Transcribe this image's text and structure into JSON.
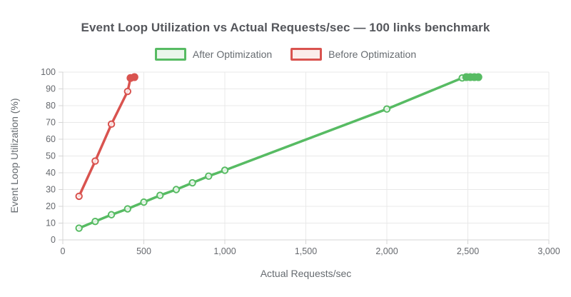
{
  "title": "Event Loop Utilization vs Actual Requests/sec — 100 links benchmark",
  "colors": {
    "after_line": "#57bb63",
    "after_legend_fill": "#ebf6ec",
    "before_line": "#d9534f",
    "before_legend_fill": "#fbedeb",
    "grid": "#e9e9e9",
    "axis": "#d4d4d4",
    "tick_text": "#66696e",
    "title_text": "#55575c"
  },
  "chart_data": {
    "type": "line",
    "title": "Event Loop Utilization vs Actual Requests/sec — 100 links benchmark",
    "xlabel": "Actual Requests/sec",
    "ylabel": "Event Loop Utilization (%)",
    "xlim": [
      0,
      3000
    ],
    "ylim": [
      0,
      100
    ],
    "grid": true,
    "legend_position": "top",
    "x_ticks": [
      0,
      500,
      1000,
      1500,
      2000,
      2500,
      3000
    ],
    "x_tick_labels": [
      "0",
      "500",
      "1,000",
      "1,500",
      "2,000",
      "2,500",
      "3,000"
    ],
    "y_ticks": [
      0,
      10,
      20,
      30,
      40,
      50,
      60,
      70,
      80,
      90,
      100
    ],
    "series": [
      {
        "name": "After Optimization",
        "color": "#57bb63",
        "legend_fill": "#ebf6ec",
        "points": [
          {
            "x": 100,
            "y": 7
          },
          {
            "x": 200,
            "y": 11
          },
          {
            "x": 300,
            "y": 15
          },
          {
            "x": 400,
            "y": 18.5
          },
          {
            "x": 500,
            "y": 22.5
          },
          {
            "x": 600,
            "y": 26.5
          },
          {
            "x": 700,
            "y": 30
          },
          {
            "x": 800,
            "y": 34
          },
          {
            "x": 900,
            "y": 38
          },
          {
            "x": 1000,
            "y": 41.5
          },
          {
            "x": 2000,
            "y": 78
          },
          {
            "x": 2465,
            "y": 96.5
          },
          {
            "x": 2490,
            "y": 97,
            "filled": true
          },
          {
            "x": 2515,
            "y": 97,
            "filled": true
          },
          {
            "x": 2540,
            "y": 97,
            "filled": true
          },
          {
            "x": 2565,
            "y": 97,
            "filled": true
          }
        ]
      },
      {
        "name": "Before Optimization",
        "color": "#d9534f",
        "legend_fill": "#fbedeb",
        "points": [
          {
            "x": 100,
            "y": 26
          },
          {
            "x": 200,
            "y": 47
          },
          {
            "x": 300,
            "y": 69
          },
          {
            "x": 400,
            "y": 88.5
          },
          {
            "x": 418,
            "y": 96.5,
            "filled": true
          },
          {
            "x": 442,
            "y": 97,
            "filled": true
          }
        ]
      }
    ]
  }
}
